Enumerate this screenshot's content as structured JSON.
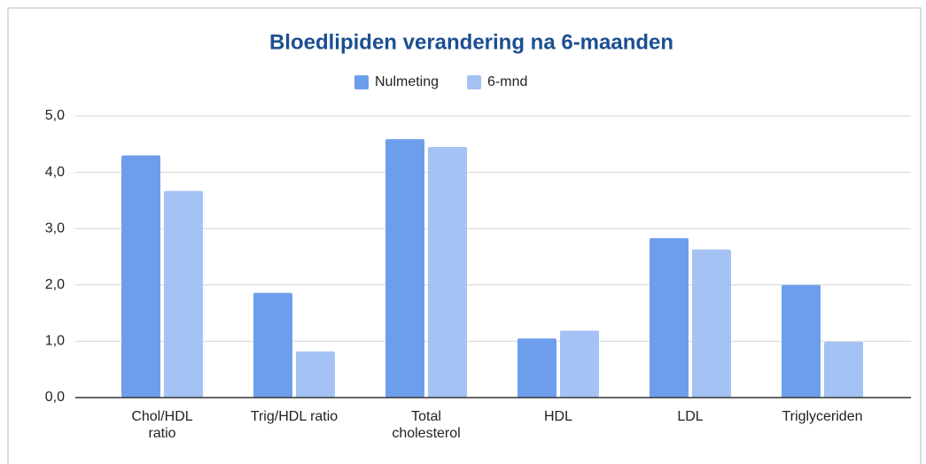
{
  "chart_data": {
    "type": "bar",
    "title": "Bloedlipiden verandering na 6-maanden",
    "categories": [
      "Chol/HDL\nratio",
      "Trig/HDL ratio",
      "Total\ncholesterol",
      "HDL",
      "LDL",
      "Triglyceriden"
    ],
    "series": [
      {
        "name": "Nulmeting",
        "color": "#6d9eeb",
        "values": [
          4.3,
          1.86,
          4.59,
          1.05,
          2.83,
          2.0
        ]
      },
      {
        "name": "6-mnd",
        "color": "#a4c2f4",
        "values": [
          3.67,
          0.82,
          4.45,
          1.19,
          2.63,
          0.99
        ]
      }
    ],
    "ylim": [
      0,
      5
    ],
    "yticks": [
      {
        "value": 0,
        "label": "0,0"
      },
      {
        "value": 1,
        "label": "1,0"
      },
      {
        "value": 2,
        "label": "2,0"
      },
      {
        "value": 3,
        "label": "3,0"
      },
      {
        "value": 4,
        "label": "4,0"
      },
      {
        "value": 5,
        "label": "5,0"
      }
    ],
    "grid": true,
    "legend": "top"
  }
}
